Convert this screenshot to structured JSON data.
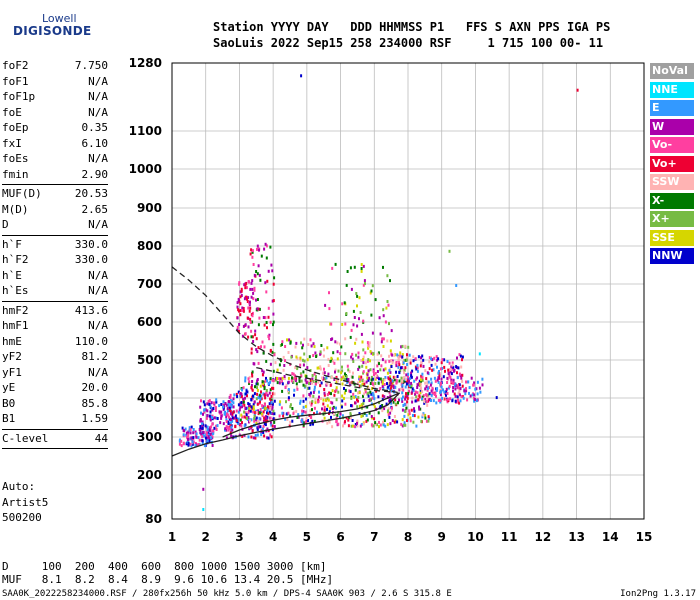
{
  "logo": {
    "top": "Lowell",
    "bottom": "DIGISONDE"
  },
  "header": {
    "line1": "Station YYYY DAY   DDD HHMMSS P1   FFS S AXN PPS IGA PS",
    "line2": "SaoLuis 2022 Sep15 258 234000 RSF     1 715 100 00- 11"
  },
  "params": [
    {
      "label": "foF2",
      "value": "7.750"
    },
    {
      "label": "foF1",
      "value": "N/A"
    },
    {
      "label": "foF1p",
      "value": "N/A"
    },
    {
      "label": "foE",
      "value": "N/A"
    },
    {
      "label": "foEp",
      "value": "0.35"
    },
    {
      "label": "fxI",
      "value": "6.10"
    },
    {
      "label": "foEs",
      "value": "N/A"
    },
    {
      "label": "fmin",
      "value": "2.90"
    },
    {
      "sep": true
    },
    {
      "label": "MUF(D)",
      "value": "20.53"
    },
    {
      "label": "M(D)",
      "value": "2.65"
    },
    {
      "label": "D",
      "value": "N/A"
    },
    {
      "sep": true
    },
    {
      "label": "h`F",
      "value": "330.0"
    },
    {
      "label": "h`F2",
      "value": "330.0"
    },
    {
      "label": "h`E",
      "value": "N/A"
    },
    {
      "label": "h`Es",
      "value": "N/A"
    },
    {
      "sep": true
    },
    {
      "label": "hmF2",
      "value": "413.6"
    },
    {
      "label": "hmF1",
      "value": "N/A"
    },
    {
      "label": "hmE",
      "value": "110.0"
    },
    {
      "label": "yF2",
      "value": "81.2"
    },
    {
      "label": "yF1",
      "value": "N/A"
    },
    {
      "label": "yE",
      "value": "20.0"
    },
    {
      "label": "B0",
      "value": "85.8"
    },
    {
      "label": "B1",
      "value": "1.59"
    },
    {
      "sep": true
    },
    {
      "label": "C-level",
      "value": "44"
    },
    {
      "sep": true
    }
  ],
  "autoscale": {
    "line1": "Auto:",
    "line2": "Artist5",
    "line3": "500200"
  },
  "legend": [
    {
      "label": "NoVal",
      "color": "#a0a0a0"
    },
    {
      "label": "NNE",
      "color": "#00e5ff"
    },
    {
      "label": "E",
      "color": "#3399ff"
    },
    {
      "label": "W",
      "color": "#aa00aa"
    },
    {
      "label": "Vo-",
      "color": "#ff3fa0"
    },
    {
      "label": "Vo+",
      "color": "#ee0033"
    },
    {
      "label": "SSW",
      "color": "#ffb3b3"
    },
    {
      "label": "X-",
      "color": "#007a00"
    },
    {
      "label": "X+",
      "color": "#77bb44"
    },
    {
      "label": "SSE",
      "color": "#d6d600"
    },
    {
      "label": "NNW",
      "color": "#0000cc"
    }
  ],
  "bottom": {
    "line1": "D     100  200  400  600  800 1000 1500 3000 [km]",
    "line2": "MUF   8.1  8.2  8.4  8.9  9.6 10.6 13.4 20.5 [MHz]"
  },
  "footer": {
    "file": "SAA0K_2022258234000.RSF / 280fx256h 50 kHz 5.0 km / DPS-4 SAA0K 903 / 2.6 S 315.8 E",
    "version": "Ion2Png 1.3.17"
  },
  "chart_data": {
    "type": "scatter",
    "x_ticks": [
      "1",
      "2",
      "3",
      "4",
      "5",
      "6",
      "7",
      "8",
      "9",
      "10",
      "11",
      "12",
      "13",
      "14",
      "15"
    ],
    "y_ticks": [
      "80",
      "200",
      "300",
      "400",
      "500",
      "600",
      "700",
      "800",
      "900",
      "1000",
      "1100",
      "1280"
    ],
    "xlim": [
      1,
      15
    ],
    "ylim": [
      80,
      1280
    ],
    "grid": true,
    "trace_clusters": [
      {
        "f": [
          1.2,
          2.2
        ],
        "h": [
          280,
          330
        ],
        "n": 120,
        "colors": [
          "#0000cc",
          "#aa00aa",
          "#3399ff",
          "#ff3fa0"
        ]
      },
      {
        "f": [
          1.8,
          2.8
        ],
        "h": [
          320,
          400
        ],
        "n": 120,
        "colors": [
          "#0000cc",
          "#aa00aa",
          "#ff3fa0",
          "#3399ff"
        ]
      },
      {
        "f": [
          2.6,
          4.0
        ],
        "h": [
          300,
          420
        ],
        "n": 200,
        "colors": [
          "#aa00aa",
          "#ff3fa0",
          "#ee0033",
          "#0000cc",
          "#3399ff"
        ]
      },
      {
        "f": [
          3.0,
          8.6
        ],
        "h": [
          330,
          460
        ],
        "n": 650,
        "colors": [
          "#aa00aa",
          "#ff3fa0",
          "#ee0033",
          "#007a00",
          "#77bb44",
          "#d6d600",
          "#ffb3b3",
          "#3399ff",
          "#0000cc"
        ]
      },
      {
        "f": [
          4.0,
          8.0
        ],
        "h": [
          440,
          560
        ],
        "n": 260,
        "colors": [
          "#aa00aa",
          "#ff3fa0",
          "#007a00",
          "#d6d600",
          "#77bb44",
          "#ffb3b3"
        ]
      },
      {
        "f": [
          7.4,
          9.6
        ],
        "h": [
          390,
          520
        ],
        "n": 260,
        "colors": [
          "#aa00aa",
          "#ff3fa0",
          "#3399ff",
          "#ffb3b3",
          "#0000cc",
          "#ee0033"
        ]
      },
      {
        "f": [
          8.5,
          10.2
        ],
        "h": [
          395,
          460
        ],
        "n": 90,
        "colors": [
          "#aa00aa",
          "#ff3fa0",
          "#3399ff"
        ]
      },
      {
        "f": [
          2.9,
          3.3
        ],
        "h": [
          560,
          720
        ],
        "n": 60,
        "colors": [
          "#aa00aa",
          "#ff3fa0",
          "#ee0033"
        ]
      },
      {
        "f": [
          3.3,
          4.0
        ],
        "h": [
          430,
          810
        ],
        "n": 110,
        "colors": [
          "#aa00aa",
          "#ff3fa0",
          "#ee0033",
          "#007a00"
        ]
      },
      {
        "f": [
          5.5,
          7.5
        ],
        "h": [
          560,
          760
        ],
        "n": 60,
        "colors": [
          "#ff3fa0",
          "#aa00aa",
          "#77bb44",
          "#d6d600",
          "#007a00"
        ]
      }
    ],
    "isolated_points": [
      {
        "f": 4.8,
        "h": 1250,
        "color": "#0000cc"
      },
      {
        "f": 13.0,
        "h": 1212,
        "color": "#ee0033"
      },
      {
        "f": 1.9,
        "h": 165,
        "color": "#aa00aa"
      },
      {
        "f": 1.9,
        "h": 110,
        "color": "#00e5ff"
      },
      {
        "f": 9.2,
        "h": 790,
        "color": "#77bb44"
      },
      {
        "f": 9.4,
        "h": 700,
        "color": "#3399ff"
      },
      {
        "f": 10.1,
        "h": 520,
        "color": "#00e5ff"
      },
      {
        "f": 10.6,
        "h": 405,
        "color": "#0000cc"
      }
    ],
    "curves": [
      {
        "style": "solid",
        "points": [
          [
            1.0,
            250
          ],
          [
            1.5,
            268
          ],
          [
            2.0,
            282
          ],
          [
            2.5,
            292
          ],
          [
            3.0,
            303
          ],
          [
            3.5,
            312
          ],
          [
            4.0,
            320
          ],
          [
            4.5,
            327
          ],
          [
            5.0,
            334
          ],
          [
            5.5,
            341
          ],
          [
            6.0,
            348
          ],
          [
            6.5,
            357
          ],
          [
            7.0,
            368
          ],
          [
            7.4,
            382
          ],
          [
            7.75,
            413.6
          ]
        ]
      },
      {
        "style": "solid",
        "points": [
          [
            2.5,
            300
          ],
          [
            3.0,
            318
          ],
          [
            3.5,
            332
          ],
          [
            4.0,
            343
          ],
          [
            4.5,
            351
          ],
          [
            5.0,
            356
          ],
          [
            5.5,
            360
          ],
          [
            6.0,
            365
          ],
          [
            6.5,
            372
          ],
          [
            7.0,
            385
          ],
          [
            7.4,
            400
          ],
          [
            7.75,
            413.6
          ]
        ]
      },
      {
        "style": "dashed",
        "points": [
          [
            1.0,
            745
          ],
          [
            1.5,
            710
          ],
          [
            2.0,
            670
          ],
          [
            2.5,
            620
          ],
          [
            3.0,
            570
          ],
          [
            3.5,
            535
          ],
          [
            4.0,
            510
          ],
          [
            4.5,
            490
          ],
          [
            5.0,
            474
          ],
          [
            5.5,
            460
          ],
          [
            6.0,
            448
          ],
          [
            6.5,
            436
          ],
          [
            7.0,
            425
          ],
          [
            7.5,
            418
          ],
          [
            7.75,
            413.6
          ]
        ]
      },
      {
        "style": "dashed",
        "points": [
          [
            3.5,
            480
          ],
          [
            4.0,
            470
          ],
          [
            4.5,
            460
          ],
          [
            5.0,
            452
          ],
          [
            5.5,
            444
          ],
          [
            6.0,
            436
          ],
          [
            6.5,
            428
          ],
          [
            7.0,
            420
          ],
          [
            7.5,
            416
          ]
        ]
      }
    ]
  }
}
